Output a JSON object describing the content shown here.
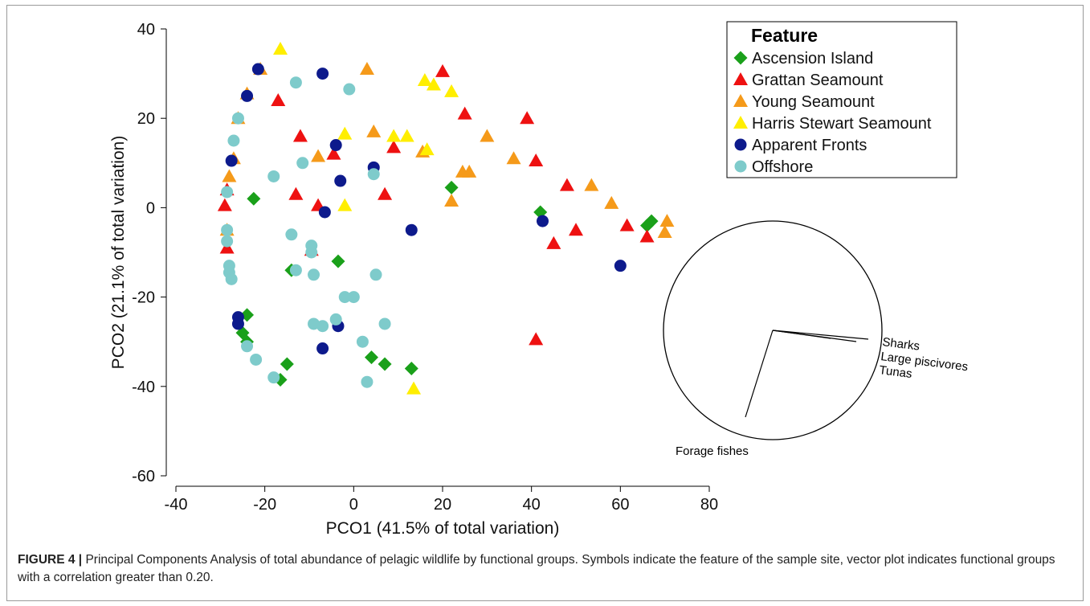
{
  "chart_data": {
    "type": "scatter",
    "xlabel": "PCO1 (41.5% of total variation)",
    "ylabel": "PCO2 (21.1% of total variation)",
    "xlim": [
      -40,
      80
    ],
    "ylim": [
      -60,
      40
    ],
    "xticks": [
      -40,
      -20,
      0,
      20,
      40,
      60,
      80
    ],
    "yticks": [
      -60,
      -40,
      -20,
      0,
      20,
      40
    ],
    "grid": false,
    "legend": {
      "title": "Feature",
      "position": "top-right",
      "entries": [
        "Ascension Island",
        "Grattan Seamount",
        "Young Seamount",
        "Harris Stewart Seamount",
        "Apparent Fronts",
        "Offshore"
      ]
    },
    "series": [
      {
        "name": "Ascension Island",
        "marker": "diamond",
        "color": "#1aa01a",
        "points": [
          [
            -22.5,
            2
          ],
          [
            -14,
            -14
          ],
          [
            -3.5,
            -12
          ],
          [
            -24,
            -24
          ],
          [
            -25,
            -28
          ],
          [
            -24,
            -30
          ],
          [
            -15,
            -35
          ],
          [
            -16.5,
            -38.5
          ],
          [
            4,
            -33.5
          ],
          [
            7,
            -35
          ],
          [
            13,
            -36
          ],
          [
            22,
            4.5
          ],
          [
            42,
            -1
          ],
          [
            66,
            -4
          ],
          [
            67,
            -3
          ]
        ]
      },
      {
        "name": "Grattan Seamount",
        "marker": "triangle",
        "color": "#ee1111",
        "points": [
          [
            -28.5,
            4
          ],
          [
            -29,
            0.5
          ],
          [
            -28.5,
            -9
          ],
          [
            -17,
            24
          ],
          [
            -12,
            16
          ],
          [
            -13,
            3
          ],
          [
            -8,
            0.5
          ],
          [
            -4.5,
            12
          ],
          [
            -9.5,
            -9.5
          ],
          [
            7,
            3
          ],
          [
            9,
            13.5
          ],
          [
            20,
            30.5
          ],
          [
            25,
            21
          ],
          [
            39,
            20
          ],
          [
            41,
            10.5
          ],
          [
            48,
            5
          ],
          [
            45,
            -8
          ],
          [
            50,
            -5
          ],
          [
            61.5,
            -4
          ],
          [
            66,
            -6.5
          ],
          [
            41,
            -29.5
          ]
        ]
      },
      {
        "name": "Young Seamount",
        "marker": "triangle",
        "color": "#f59a1a",
        "points": [
          [
            -28,
            7
          ],
          [
            -28.5,
            -5
          ],
          [
            -27,
            11
          ],
          [
            -26,
            20
          ],
          [
            -24,
            25.5
          ],
          [
            -21,
            31
          ],
          [
            -8,
            11.5
          ],
          [
            3,
            31
          ],
          [
            4.5,
            17
          ],
          [
            15.5,
            12.5
          ],
          [
            22,
            1.5
          ],
          [
            24.5,
            8
          ],
          [
            26,
            8
          ],
          [
            30,
            16
          ],
          [
            36,
            11
          ],
          [
            53.5,
            5
          ],
          [
            58,
            1
          ],
          [
            70,
            -5.5
          ],
          [
            70.5,
            -3
          ]
        ]
      },
      {
        "name": "Harris Stewart Seamount",
        "marker": "triangle",
        "color": "#ffee00",
        "points": [
          [
            -16.5,
            35.5
          ],
          [
            -2,
            16.5
          ],
          [
            -2,
            0.5
          ],
          [
            9,
            16
          ],
          [
            12,
            16
          ],
          [
            16.5,
            13
          ],
          [
            16,
            28.5
          ],
          [
            18,
            27.5
          ],
          [
            22,
            26
          ],
          [
            13.5,
            -40.5
          ]
        ]
      },
      {
        "name": "Apparent Fronts",
        "marker": "circle",
        "color": "#0d1a8c",
        "points": [
          [
            -27.5,
            10.5
          ],
          [
            -24,
            25
          ],
          [
            -21.5,
            31
          ],
          [
            -7,
            30
          ],
          [
            -4,
            14
          ],
          [
            -3,
            6
          ],
          [
            4.5,
            9
          ],
          [
            -6.5,
            -1
          ],
          [
            13,
            -5
          ],
          [
            42.5,
            -3
          ],
          [
            60,
            -13
          ],
          [
            -26,
            -24.5
          ],
          [
            -26,
            -26
          ],
          [
            -3.5,
            -26.5
          ],
          [
            -7,
            -31.5
          ]
        ]
      },
      {
        "name": "Offshore",
        "marker": "circle",
        "color": "#7ecbcb",
        "points": [
          [
            -26,
            20
          ],
          [
            -27,
            15
          ],
          [
            -13,
            28
          ],
          [
            -1,
            26.5
          ],
          [
            -11.5,
            10
          ],
          [
            -18,
            7
          ],
          [
            4.5,
            7.5
          ],
          [
            -28.5,
            3.5
          ],
          [
            -28.5,
            -5
          ],
          [
            -28.5,
            -7.5
          ],
          [
            -28,
            -13
          ],
          [
            -28,
            -14.5
          ],
          [
            -27.5,
            -16
          ],
          [
            -14,
            -6
          ],
          [
            -9.5,
            -8.5
          ],
          [
            -9.5,
            -10
          ],
          [
            -13,
            -14
          ],
          [
            -9,
            -15
          ],
          [
            5,
            -15
          ],
          [
            -2,
            -20
          ],
          [
            0,
            -20
          ],
          [
            -9,
            -26
          ],
          [
            -7,
            -26.5
          ],
          [
            -4,
            -25
          ],
          [
            2,
            -30
          ],
          [
            7,
            -26
          ],
          [
            -24,
            -31
          ],
          [
            -22,
            -34
          ],
          [
            -18,
            -38
          ],
          [
            3,
            -39
          ]
        ]
      }
    ],
    "vector_plot": {
      "labels": [
        "Sharks",
        "Large piscivores",
        "Tunas",
        "Forage fishes"
      ]
    }
  },
  "caption": {
    "label": "FIGURE 4 |",
    "text": " Principal Components Analysis of total abundance of pelagic wildlife by functional groups. Symbols indicate the feature of the sample site, vector plot indicates functional groups with a correlation greater than 0.20."
  }
}
